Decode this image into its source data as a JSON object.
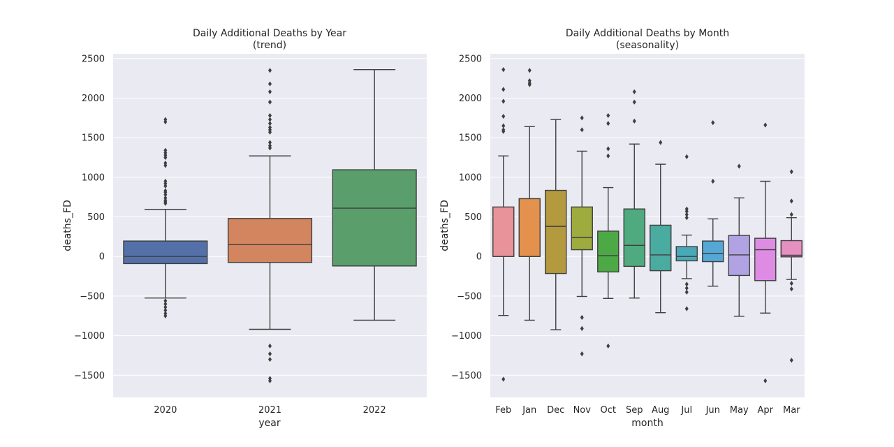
{
  "chart_data": [
    {
      "type": "box",
      "title": "Daily Additional Deaths by Year",
      "subtitle": "(trend)",
      "xlabel": "year",
      "ylabel": "deaths_FD",
      "ylim": [
        -1780,
        2560
      ],
      "yticks": [
        -1500,
        -1000,
        -500,
        0,
        500,
        1000,
        1500,
        2000,
        2500
      ],
      "grid": true,
      "categories": [
        "2020",
        "2021",
        "2022"
      ],
      "boxes": [
        {
          "category": "2020",
          "color": "#5470a8",
          "q1": -90,
          "median": 0,
          "q3": 195,
          "whisker_low": -525,
          "whisker_high": 595,
          "fliers": [
            1730,
            1700,
            1340,
            1310,
            1280,
            1250,
            1180,
            1150,
            950,
            920,
            890,
            830,
            810,
            780,
            740,
            710,
            690,
            670,
            -560,
            -600,
            -640,
            -680,
            -720,
            -750
          ]
        },
        {
          "category": "2021",
          "color": "#d2855f",
          "q1": -75,
          "median": 150,
          "q3": 480,
          "whisker_low": -920,
          "whisker_high": 1270,
          "fliers": [
            2350,
            2180,
            2080,
            1950,
            1780,
            1730,
            1680,
            1630,
            1600,
            1570,
            1440,
            1400,
            1370,
            -1130,
            -1230,
            -1300,
            -1540,
            -1570
          ]
        },
        {
          "category": "2022",
          "color": "#5a9f6b",
          "q1": -120,
          "median": 610,
          "q3": 1095,
          "whisker_low": -805,
          "whisker_high": 2360,
          "fliers": []
        }
      ]
    },
    {
      "type": "box",
      "title": "Daily Additional Deaths by Month",
      "subtitle": "(seasonality)",
      "xlabel": "month",
      "ylabel": "deaths_FD",
      "ylim": [
        -1780,
        2560
      ],
      "yticks": [
        -1500,
        -1000,
        -500,
        0,
        500,
        1000,
        1500,
        2000,
        2500
      ],
      "grid": true,
      "categories": [
        "Feb",
        "Jan",
        "Dec",
        "Nov",
        "Oct",
        "Sep",
        "Aug",
        "Jul",
        "Jun",
        "May",
        "Apr",
        "Mar"
      ],
      "boxes": [
        {
          "category": "Feb",
          "color": "#e8929a",
          "q1": 0,
          "median": 0,
          "q3": 625,
          "whisker_low": -745,
          "whisker_high": 1270,
          "fliers": [
            2360,
            2110,
            1960,
            1770,
            1650,
            1600,
            1580,
            -1550
          ]
        },
        {
          "category": "Jan",
          "color": "#e3914d",
          "q1": 0,
          "median": 0,
          "q3": 730,
          "whisker_low": -805,
          "whisker_high": 1640,
          "fliers": [
            2350,
            2220,
            2190,
            2170
          ]
        },
        {
          "category": "Dec",
          "color": "#b39a3f",
          "q1": -215,
          "median": 380,
          "q3": 835,
          "whisker_low": -925,
          "whisker_high": 1730,
          "fliers": []
        },
        {
          "category": "Nov",
          "color": "#9eab3e",
          "q1": 85,
          "median": 240,
          "q3": 625,
          "whisker_low": -505,
          "whisker_high": 1330,
          "fliers": [
            1750,
            1600,
            -770,
            -910,
            -1230
          ]
        },
        {
          "category": "Oct",
          "color": "#4da846",
          "q1": -195,
          "median": 10,
          "q3": 320,
          "whisker_low": -530,
          "whisker_high": 870,
          "fliers": [
            1780,
            1680,
            1360,
            1270,
            -1130
          ]
        },
        {
          "category": "Sep",
          "color": "#50aa7f",
          "q1": -125,
          "median": 140,
          "q3": 600,
          "whisker_low": -525,
          "whisker_high": 1420,
          "fliers": [
            2080,
            1950,
            1710
          ]
        },
        {
          "category": "Aug",
          "color": "#4aaba1",
          "q1": -180,
          "median": 20,
          "q3": 395,
          "whisker_low": -710,
          "whisker_high": 1165,
          "fliers": [
            1440
          ]
        },
        {
          "category": "Jul",
          "color": "#4aa9b6",
          "q1": -55,
          "median": 0,
          "q3": 125,
          "whisker_low": -280,
          "whisker_high": 270,
          "fliers": [
            1260,
            600,
            570,
            530,
            490,
            -350,
            -400,
            -450,
            -660
          ]
        },
        {
          "category": "Jun",
          "color": "#55a7d6",
          "q1": -65,
          "median": 40,
          "q3": 195,
          "whisker_low": -375,
          "whisker_high": 475,
          "fliers": [
            1690,
            950
          ]
        },
        {
          "category": "May",
          "color": "#b1a3e3",
          "q1": -240,
          "median": 20,
          "q3": 265,
          "whisker_low": -755,
          "whisker_high": 740,
          "fliers": [
            1140
          ]
        },
        {
          "category": "Apr",
          "color": "#de8ce3",
          "q1": -305,
          "median": 85,
          "q3": 230,
          "whisker_low": -715,
          "whisker_high": 950,
          "fliers": [
            1660,
            -1570
          ]
        },
        {
          "category": "Mar",
          "color": "#e68fc1",
          "q1": -5,
          "median": 15,
          "q3": 200,
          "whisker_low": -290,
          "whisker_high": 490,
          "fliers": [
            1070,
            700,
            530,
            -340,
            -410,
            -1310
          ]
        }
      ]
    }
  ]
}
